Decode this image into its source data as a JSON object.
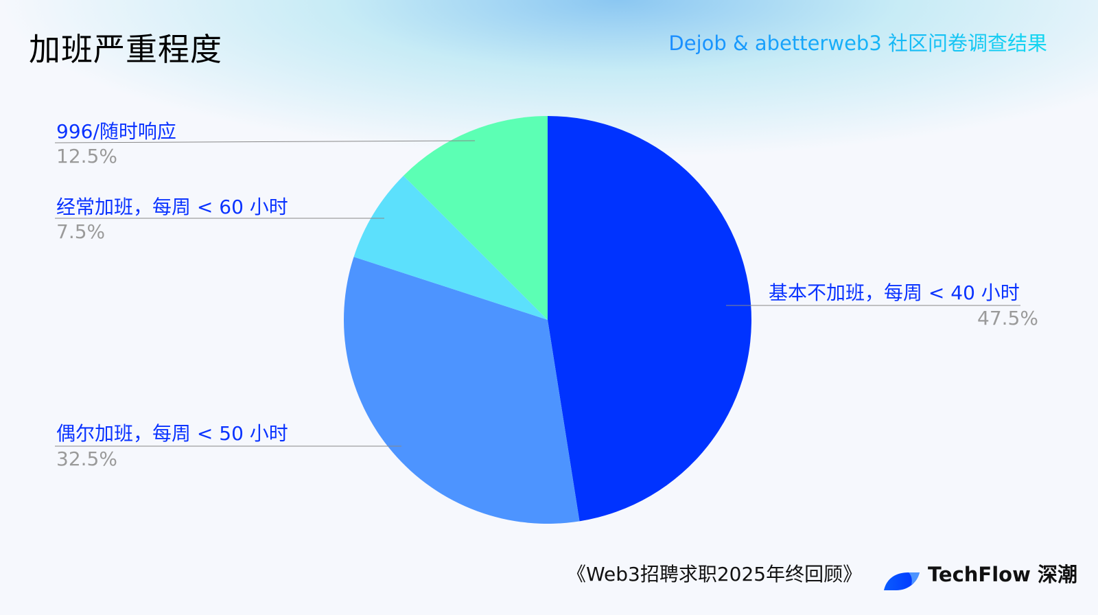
{
  "header": {
    "title": "加班严重程度",
    "subtitle": "Dejob & abetterweb3 社区问卷调查结果"
  },
  "chart_data": {
    "type": "pie",
    "start_angle": "12 o'clock",
    "direction": "clockwise",
    "categories": [
      "基本不加班，每周 < 40 小时",
      "偶尔加班，每周 < 50 小时",
      "经常加班，每周 < 60 小时",
      "996/随时响应"
    ],
    "values": [
      47.5,
      32.5,
      7.5,
      12.5
    ],
    "value_labels": [
      "47.5%",
      "32.5%",
      "7.5%",
      "12.5%"
    ],
    "colors": [
      "#0033ff",
      "#4d94ff",
      "#5ce0fc",
      "#5cffb4"
    ]
  },
  "footer": {
    "report": "《Web3招聘求职2025年终回顾》",
    "brand": "TechFlow 深潮"
  }
}
